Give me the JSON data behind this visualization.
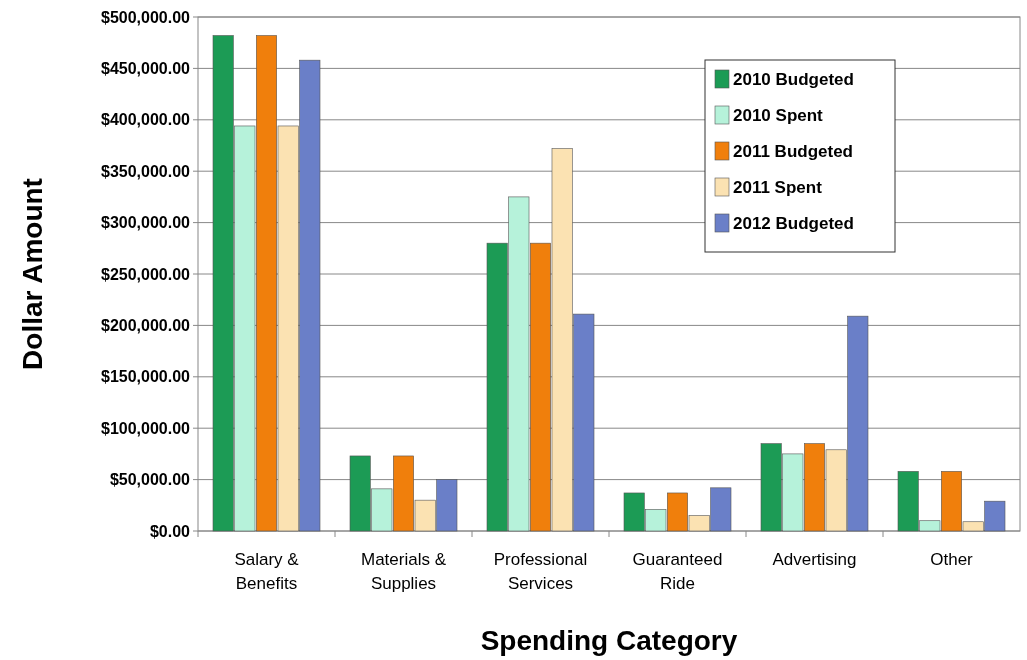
{
  "chart_data": {
    "type": "bar",
    "xlabel": "Spending Category",
    "ylabel": "Dollar Amount",
    "categories": [
      "Salary & Benefits",
      "Materials & Supplies",
      "Professional Services",
      "Guaranteed Ride",
      "Advertising",
      "Other"
    ],
    "series": [
      {
        "name": "2010 Budgeted",
        "color": "#1c9b55",
        "values": [
          482000,
          73000,
          280000,
          37000,
          85000,
          58000
        ]
      },
      {
        "name": "2010 Spent",
        "color": "#b6f2da",
        "values": [
          394000,
          41000,
          325000,
          21000,
          75000,
          10000
        ]
      },
      {
        "name": "2011 Budgeted",
        "color": "#f07f0c",
        "values": [
          482000,
          73000,
          280000,
          37000,
          85000,
          58000
        ]
      },
      {
        "name": "2011 Spent",
        "color": "#fbe2b2",
        "values": [
          394000,
          30000,
          372000,
          15000,
          79000,
          9000
        ]
      },
      {
        "name": "2012 Budgeted",
        "color": "#6a7fc8",
        "values": [
          458000,
          50000,
          211000,
          42000,
          209000,
          29000
        ]
      }
    ],
    "ylim": [
      0,
      500000
    ],
    "yticks": [
      {
        "value": 0,
        "label": "$0.00"
      },
      {
        "value": 50000,
        "label": "$50,000.00"
      },
      {
        "value": 100000,
        "label": "$100,000.00"
      },
      {
        "value": 150000,
        "label": "$150,000.00"
      },
      {
        "value": 200000,
        "label": "$200,000.00"
      },
      {
        "value": 250000,
        "label": "$250,000.00"
      },
      {
        "value": 300000,
        "label": "$300,000.00"
      },
      {
        "value": 350000,
        "label": "$350,000.00"
      },
      {
        "value": 400000,
        "label": "$400,000.00"
      },
      {
        "value": 450000,
        "label": "$450,000.00"
      },
      {
        "value": 500000,
        "label": "$500,000.00"
      }
    ],
    "grid": "y",
    "legend": "top right"
  }
}
